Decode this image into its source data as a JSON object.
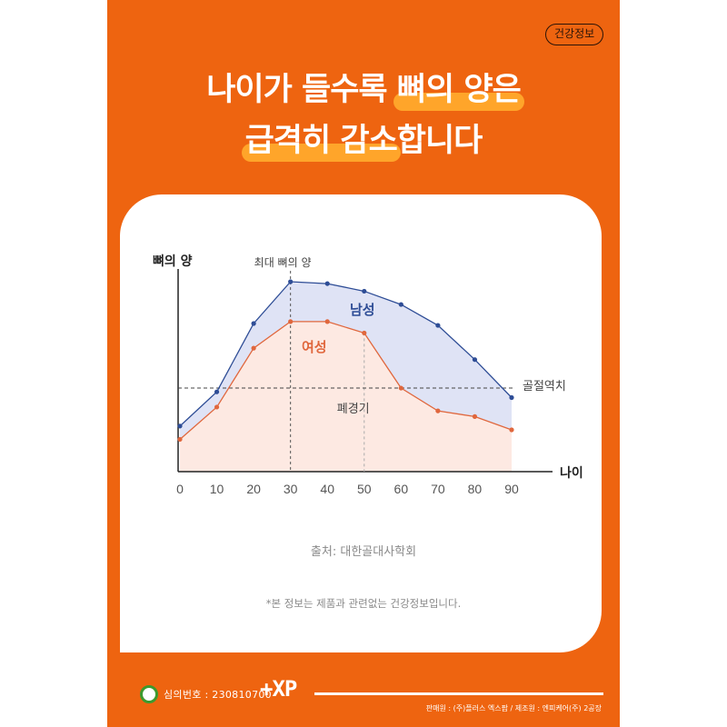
{
  "tag": "건강정보",
  "headline": {
    "line1_plain": "나이가 들수록 ",
    "line1_highlight": "뼈의 양은",
    "line2_highlight": "급격히 감소",
    "line2_plain": "합니다"
  },
  "chart_data": {
    "type": "area",
    "ylabel": "뼈의 양",
    "xlabel": "나이",
    "x": [
      0,
      10,
      20,
      30,
      40,
      50,
      60,
      70,
      80,
      90
    ],
    "xlim": [
      0,
      90
    ],
    "ylim": [
      0,
      100
    ],
    "series": [
      {
        "name": "남성",
        "values": [
          24,
          42,
          78,
          100,
          99,
          95,
          88,
          77,
          59,
          39
        ],
        "color": "#2e4d96",
        "fill": "#dfe3f5"
      },
      {
        "name": "여성",
        "values": [
          17,
          34,
          65,
          79,
          79,
          73,
          44,
          32,
          29,
          22
        ],
        "color": "#e0673d",
        "fill": "#fde9e2"
      }
    ],
    "annotations": {
      "peak_label": "최대 뼈의 양",
      "peak_x": 30,
      "menopause_label": "폐경기",
      "menopause_x": 50,
      "threshold_label": "골절역치",
      "threshold_y": 44
    },
    "grid": false,
    "legend": "inline labels"
  },
  "source": "출처: 대한골대사학회",
  "note": "*본 정보는 제품과 관련없는 건강정보입니다.",
  "footer": {
    "review_number": "심의번호 : 230810700",
    "logo": "+XP",
    "maker": "판매원 : (주)플러스 엑스팜 / 제조원 : 엔피케어(주) 2공장"
  }
}
